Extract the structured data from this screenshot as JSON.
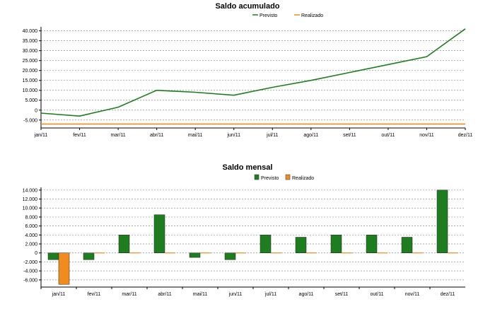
{
  "chart_data": [
    {
      "type": "line",
      "title": "Saldo acumulado",
      "xlabel": "",
      "ylabel": "",
      "categories": [
        "jan/11",
        "fev/11",
        "mar/11",
        "abr/11",
        "mai/11",
        "jun/11",
        "jul/11",
        "ago/11",
        "set/11",
        "out/11",
        "nov/11",
        "dez/11"
      ],
      "series": [
        {
          "name": "Previsto",
          "color": "#1e7d1e",
          "values": [
            -1500,
            -3000,
            1500,
            10000,
            9000,
            7500,
            11500,
            15000,
            19000,
            23000,
            27000,
            41000
          ]
        },
        {
          "name": "Realizado",
          "color": "#f08c1e",
          "values": [
            -7000,
            -7000,
            -7000,
            -7000,
            -7000,
            -7000,
            -7000,
            -7000,
            -7000,
            -7000,
            -7000,
            -7000
          ]
        }
      ],
      "yticks": [
        -5000,
        0,
        5000,
        10000,
        15000,
        20000,
        25000,
        30000,
        35000,
        40000
      ],
      "ytick_labels": [
        "-5.000",
        "0",
        "5.000",
        "10.000",
        "15.000",
        "20.000",
        "25.000",
        "30.000",
        "35.000",
        "40.000"
      ],
      "ylim": [
        -9000,
        42000
      ],
      "grid": true,
      "legend": "top-center"
    },
    {
      "type": "bar",
      "title": "Saldo mensal",
      "xlabel": "",
      "ylabel": "",
      "categories": [
        "jan/11",
        "fev/11",
        "mar/11",
        "abr/11",
        "mai/11",
        "jun/11",
        "jul/11",
        "ago/11",
        "set/11",
        "out/11",
        "nov/11",
        "dez/11"
      ],
      "series": [
        {
          "name": "Previsto",
          "color": "#1e7d1e",
          "values": [
            -1500,
            -1500,
            4000,
            8500,
            -1000,
            -1500,
            4000,
            3500,
            4000,
            4000,
            3500,
            14000
          ]
        },
        {
          "name": "Realizado",
          "color": "#f08c1e",
          "values": [
            -7000,
            0,
            0,
            0,
            0,
            0,
            0,
            0,
            0,
            0,
            0,
            0
          ]
        }
      ],
      "yticks": [
        -6000,
        -4000,
        -2000,
        0,
        2000,
        4000,
        6000,
        8000,
        10000,
        12000,
        14000
      ],
      "ytick_labels": [
        "-6.000",
        "-4.000",
        "-2.000",
        "0",
        "2.000",
        "4.000",
        "6.000",
        "8.000",
        "10.000",
        "12.000",
        "14.000"
      ],
      "ylim": [
        -7600,
        14600
      ],
      "grid": true,
      "legend": "top-center"
    }
  ]
}
